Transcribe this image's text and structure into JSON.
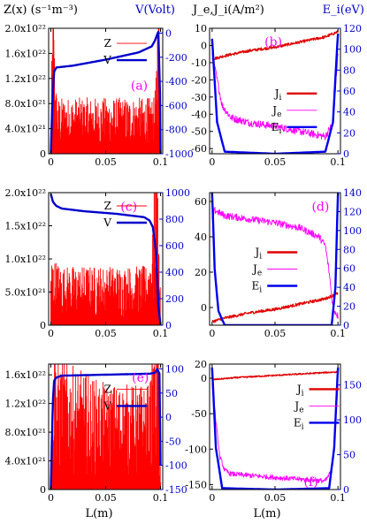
{
  "headers": {
    "left_y": "Z(x) (s⁻¹m⁻³)",
    "left_y2": "V(Volt)",
    "right_y": "J_e,J_i(A/m²)",
    "right_y2": "E_i(eV)",
    "xlabel": "L(m)"
  },
  "colors": {
    "Z": "#ff0000",
    "V": "#0000cc",
    "Ji": "#e00000",
    "Je": "#ff00ff",
    "Ei": "#0000ee",
    "tag": "#ff00ff",
    "axis2": "#0000cc"
  },
  "chart_data": [
    {
      "type": "line",
      "panel": "a",
      "tag": "(a)",
      "x_ticks": [
        "0",
        "0.05",
        "0.1"
      ],
      "xlim": [
        -0.002,
        0.102
      ],
      "ylim": [
        0,
        2e+22
      ],
      "y_ticks": [
        {
          "v": 0,
          "label": "0"
        },
        {
          "v": 4e+21,
          "label": "4.0x10²¹"
        },
        {
          "v": 8e+21,
          "label": "8.0x10²¹"
        },
        {
          "v": 1.2e+22,
          "label": "1.2x10²²"
        },
        {
          "v": 1.6e+22,
          "label": "1.6x10²²"
        },
        {
          "v": 2e+22,
          "label": "2.0x10²²"
        }
      ],
      "y2lim": [
        -1000,
        40
      ],
      "y2_ticks": [
        {
          "v": 0,
          "label": "0"
        },
        {
          "v": -200,
          "label": "-200"
        },
        {
          "v": -400,
          "label": "-400"
        },
        {
          "v": -600,
          "label": "-600"
        },
        {
          "v": -800,
          "label": "-800"
        },
        {
          "v": -1000,
          "label": "-1000"
        }
      ],
      "legend": [
        {
          "label": "Z",
          "key": "Z"
        },
        {
          "label": "V",
          "key": "V"
        }
      ],
      "series": [
        {
          "name": "Z",
          "axis": "left",
          "kind": "noise",
          "x": [
            0,
            0.002,
            0.004,
            0.006,
            0.05,
            0.094,
            0.096,
            0.098,
            0.1
          ],
          "y": [
            2e+21,
            1.7e+22,
            7e+21,
            5e+21,
            5e+21,
            5e+21,
            7e+21,
            1.8e+22,
            2e+21
          ],
          "spread": 0.8
        },
        {
          "name": "V",
          "axis": "left2",
          "x": [
            0,
            0.001,
            0.002,
            0.003,
            0.005,
            0.02,
            0.05,
            0.08,
            0.092,
            0.095,
            0.097,
            0.098,
            0.0995,
            0.1
          ],
          "y": [
            -1000,
            -700,
            -450,
            -320,
            -285,
            -270,
            -220,
            -160,
            -110,
            -60,
            -10,
            10,
            -500,
            -1000
          ]
        }
      ]
    },
    {
      "type": "line",
      "panel": "b",
      "tag": "(b)",
      "x_ticks": [
        "0",
        "0.05",
        "0.1"
      ],
      "xlim": [
        -0.002,
        0.102
      ],
      "ylim": [
        -63,
        10
      ],
      "y_ticks": [
        {
          "v": 10,
          "label": "10"
        },
        {
          "v": 0,
          "label": "0"
        },
        {
          "v": -10,
          "label": "-10"
        },
        {
          "v": -20,
          "label": "-20"
        },
        {
          "v": -30,
          "label": "-30"
        },
        {
          "v": -40,
          "label": "-40"
        },
        {
          "v": -50,
          "label": "-50"
        },
        {
          "v": -60,
          "label": "-60"
        }
      ],
      "y2lim": [
        0,
        120
      ],
      "y2_ticks": [
        {
          "v": 0,
          "label": "0"
        },
        {
          "v": 20,
          "label": "20"
        },
        {
          "v": 40,
          "label": "40"
        },
        {
          "v": 60,
          "label": "60"
        },
        {
          "v": 80,
          "label": "80"
        },
        {
          "v": 100,
          "label": "100"
        },
        {
          "v": 120,
          "label": "120"
        }
      ],
      "legend": [
        {
          "label": "J",
          "sub": "i",
          "key": "Ji"
        },
        {
          "label": "J",
          "sub": "e",
          "key": "Je"
        },
        {
          "label": "E",
          "sub": "i",
          "key": "Ei"
        }
      ],
      "series": [
        {
          "name": "Ji",
          "axis": "left",
          "x": [
            0,
            0.01,
            0.03,
            0.05,
            0.07,
            0.09,
            0.1
          ],
          "y": [
            -8,
            -6,
            -3,
            -1,
            2,
            5,
            8
          ],
          "jitter": 0.8
        },
        {
          "name": "Je",
          "axis": "left",
          "x": [
            0,
            0.008,
            0.015,
            0.03,
            0.05,
            0.07,
            0.09,
            0.096,
            0.1
          ],
          "y": [
            -5,
            -35,
            -42,
            -45,
            -47,
            -50,
            -53,
            -45,
            -5
          ],
          "jitter": 2.2
        },
        {
          "name": "Ei",
          "axis": "left2",
          "x": [
            0,
            0.004,
            0.01,
            0.05,
            0.09,
            0.096,
            0.1
          ],
          "y": [
            110,
            30,
            2,
            0,
            2,
            30,
            115
          ]
        }
      ]
    },
    {
      "type": "line",
      "panel": "c",
      "tag": "(c)",
      "x_ticks": [
        "0",
        "0.05",
        "0.1"
      ],
      "xlim": [
        -0.002,
        0.102
      ],
      "ylim": [
        0,
        2e+22
      ],
      "y_ticks": [
        {
          "v": 0,
          "label": "0"
        },
        {
          "v": 5e+21,
          "label": "5.0x10²¹"
        },
        {
          "v": 1e+22,
          "label": "1.0x10²²"
        },
        {
          "v": 1.5e+22,
          "label": "1.5x10²²"
        },
        {
          "v": 2e+22,
          "label": "2.0x10²²"
        }
      ],
      "y2lim": [
        0,
        1000
      ],
      "y2_ticks": [
        {
          "v": 0,
          "label": "0"
        },
        {
          "v": 200,
          "label": "200"
        },
        {
          "v": 400,
          "label": "400"
        },
        {
          "v": 600,
          "label": "600"
        },
        {
          "v": 800,
          "label": "800"
        },
        {
          "v": 1000,
          "label": "1000"
        }
      ],
      "legend": [
        {
          "label": "Z",
          "key": "Z"
        },
        {
          "label": "V",
          "key": "V"
        }
      ],
      "series": [
        {
          "name": "Z",
          "axis": "left",
          "kind": "noise",
          "x": [
            0,
            0.01,
            0.05,
            0.088,
            0.093,
            0.096,
            0.1
          ],
          "y": [
            6e+21,
            5e+21,
            5e+21,
            5e+21,
            8e+21,
            1.9e+22,
            2e+21
          ],
          "spread": 0.8
        },
        {
          "name": "V",
          "axis": "left2",
          "x": [
            0,
            0.002,
            0.005,
            0.01,
            0.03,
            0.06,
            0.085,
            0.09,
            0.093,
            0.096,
            0.098,
            0.1
          ],
          "y": [
            990,
            930,
            900,
            880,
            860,
            840,
            815,
            790,
            740,
            550,
            150,
            0
          ]
        }
      ]
    },
    {
      "type": "line",
      "panel": "d",
      "tag": "(d)",
      "x_ticks": [
        "0",
        "0.05",
        "0.1"
      ],
      "xlim": [
        -0.002,
        0.102
      ],
      "ylim": [
        -10,
        65
      ],
      "y_ticks": [
        {
          "v": 60,
          "label": "60"
        },
        {
          "v": 40,
          "label": "40"
        },
        {
          "v": 20,
          "label": "20"
        },
        {
          "v": 0,
          "label": "0"
        }
      ],
      "y2lim": [
        0,
        140
      ],
      "y2_ticks": [
        {
          "v": 0,
          "label": "0"
        },
        {
          "v": 20,
          "label": "20"
        },
        {
          "v": 40,
          "label": "40"
        },
        {
          "v": 60,
          "label": "60"
        },
        {
          "v": 80,
          "label": "80"
        },
        {
          "v": 100,
          "label": "100"
        },
        {
          "v": 120,
          "label": "120"
        },
        {
          "v": 140,
          "label": "140"
        }
      ],
      "legend": [
        {
          "label": "J",
          "sub": "i",
          "key": "Ji"
        },
        {
          "label": "J",
          "sub": "e",
          "key": "Je"
        },
        {
          "label": "E",
          "sub": "i",
          "key": "Ei"
        }
      ],
      "series": [
        {
          "name": "Ji",
          "axis": "left",
          "x": [
            0,
            0.01,
            0.03,
            0.05,
            0.07,
            0.09,
            0.1
          ],
          "y": [
            -8,
            -6,
            -3,
            -1,
            2,
            5,
            8
          ],
          "jitter": 0.8
        },
        {
          "name": "Je",
          "axis": "left",
          "x": [
            0,
            0.002,
            0.01,
            0.03,
            0.05,
            0.07,
            0.085,
            0.09,
            0.093,
            0.096,
            0.1
          ],
          "y": [
            50,
            55,
            52,
            50,
            48,
            45,
            40,
            35,
            20,
            0,
            -5
          ],
          "jitter": 2.0
        },
        {
          "name": "Ei",
          "axis": "left2",
          "x": [
            0,
            0.002,
            0.005,
            0.01,
            0.05,
            0.09,
            0.095,
            0.098,
            0.1
          ],
          "y": [
            140,
            60,
            15,
            0,
            0,
            0,
            0,
            40,
            140
          ]
        }
      ]
    },
    {
      "type": "line",
      "panel": "e",
      "tag": "(e)",
      "x_ticks": [
        "0",
        "0.05",
        "0.1"
      ],
      "xlim": [
        -0.002,
        0.102
      ],
      "ylim": [
        0,
        1.75e+22
      ],
      "y_ticks": [
        {
          "v": 0,
          "label": "0"
        },
        {
          "v": 4e+21,
          "label": "4.0x10²¹"
        },
        {
          "v": 8e+21,
          "label": "8.0x10²¹"
        },
        {
          "v": 1.2e+22,
          "label": "1.2x10²²"
        },
        {
          "v": 1.6e+22,
          "label": "1.6x10²²"
        }
      ],
      "y2lim": [
        -150,
        110
      ],
      "y2_ticks": [
        {
          "v": 100,
          "label": "100"
        },
        {
          "v": 50,
          "label": "50"
        },
        {
          "v": 0,
          "label": "0"
        },
        {
          "v": -50,
          "label": "-50"
        },
        {
          "v": -100,
          "label": "-100"
        },
        {
          "v": -150,
          "label": "-150"
        }
      ],
      "legend": [
        {
          "label": "Z",
          "key": "Z"
        },
        {
          "label": "V",
          "key": "V"
        }
      ],
      "series": [
        {
          "name": "Z",
          "axis": "left",
          "kind": "noise",
          "x": [
            0,
            0.003,
            0.006,
            0.05,
            0.09,
            0.095,
            0.098,
            0.1
          ],
          "y": [
            1e+21,
            1.3e+22,
            1e+22,
            8e+21,
            8e+21,
            1.2e+22,
            1.5e+22,
            1e+21
          ],
          "spread": 0.85
        },
        {
          "name": "V",
          "axis": "left2",
          "x": [
            0,
            0.001,
            0.002,
            0.003,
            0.005,
            0.01,
            0.05,
            0.09,
            0.095,
            0.097,
            0.099,
            0.1
          ],
          "y": [
            -150,
            -50,
            40,
            75,
            82,
            86,
            88,
            90,
            92,
            100,
            90,
            -100
          ]
        }
      ]
    },
    {
      "type": "line",
      "panel": "f",
      "tag": "(f)",
      "x_ticks": [
        "0",
        "0.05",
        "0.1"
      ],
      "xlim": [
        -0.002,
        0.102
      ],
      "ylim": [
        -157,
        20
      ],
      "y_ticks": [
        {
          "v": 20,
          "label": "20"
        },
        {
          "v": 0,
          "label": "0"
        },
        {
          "v": -50,
          "label": "-50"
        },
        {
          "v": -100,
          "label": "-100"
        },
        {
          "v": -150,
          "label": "-150"
        }
      ],
      "y2lim": [
        0,
        180
      ],
      "y2_ticks": [
        {
          "v": 0,
          "label": "0"
        },
        {
          "v": 50,
          "label": "50"
        },
        {
          "v": 100,
          "label": "100"
        },
        {
          "v": 150,
          "label": "150"
        }
      ],
      "legend": [
        {
          "label": "J",
          "sub": "i",
          "key": "Ji"
        },
        {
          "label": "J",
          "sub": "e",
          "key": "Je"
        },
        {
          "label": "E",
          "sub": "i",
          "key": "Ei"
        }
      ],
      "series": [
        {
          "name": "Ji",
          "axis": "left",
          "x": [
            0,
            0.02,
            0.05,
            0.08,
            0.1
          ],
          "y": [
            -2,
            1,
            4,
            7,
            9
          ],
          "jitter": 1.0
        },
        {
          "name": "Je",
          "axis": "left",
          "x": [
            0,
            0.003,
            0.006,
            0.01,
            0.015,
            0.05,
            0.09,
            0.095,
            0.098,
            0.1
          ],
          "y": [
            -10,
            -60,
            -110,
            -130,
            -135,
            -140,
            -145,
            -130,
            -70,
            -10
          ],
          "jitter": 3.5
        },
        {
          "name": "Ei",
          "axis": "left2",
          "x": [
            0,
            0.003,
            0.008,
            0.05,
            0.093,
            0.097,
            0.1
          ],
          "y": [
            175,
            60,
            2,
            0,
            2,
            60,
            175
          ]
        }
      ]
    }
  ]
}
